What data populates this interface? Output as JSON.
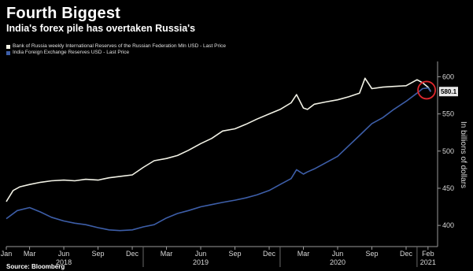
{
  "header": {
    "title": "Fourth Biggest",
    "subtitle": "India's forex pile has overtaken Russia's"
  },
  "footer": {
    "source": "Source: Bloomberg"
  },
  "colors": {
    "background": "#000000",
    "russia_series": "#f2f2e6",
    "india_series": "#3d5ea8",
    "highlight_circle": "#e0282e",
    "grid": "#3a3a3a"
  },
  "chart_data": {
    "type": "line",
    "title": "Fourth Biggest",
    "subtitle": "India's forex pile has overtaken Russia's",
    "ylabel": "In billions of dollars",
    "xlabel": "",
    "ylim": [
      380,
      610
    ],
    "y_axis_position": "right",
    "yticks": [
      400,
      450,
      500,
      550,
      600
    ],
    "grid": false,
    "legend_position": "top-left",
    "last_price_label": "580.1",
    "month_ticks": [
      "Jan",
      "Mar",
      "Jun",
      "Sep",
      "Dec",
      "Mar",
      "Jun",
      "Sep",
      "Dec",
      "Mar",
      "Jun",
      "Sep",
      "Dec",
      "Feb"
    ],
    "month_tick_x": [
      2018.0,
      2018.17,
      2018.42,
      2018.67,
      2018.92,
      2019.17,
      2019.42,
      2019.67,
      2019.92,
      2020.17,
      2020.42,
      2020.67,
      2020.92,
      2021.08
    ],
    "year_labels": [
      "2018",
      "2019",
      "2020",
      "2021"
    ],
    "year_label_x": [
      2018.42,
      2019.42,
      2020.42,
      2021.08
    ],
    "xlim": [
      2018.0,
      2021.15
    ],
    "series": [
      {
        "name": "Bank of Russia weekly International Reserves of the Russian Federation Mln USD - Last Price",
        "color": "#f2f2e6",
        "x": [
          2018.0,
          2018.05,
          2018.1,
          2018.17,
          2018.25,
          2018.33,
          2018.42,
          2018.5,
          2018.58,
          2018.67,
          2018.75,
          2018.83,
          2018.92,
          2019.0,
          2019.08,
          2019.17,
          2019.25,
          2019.33,
          2019.42,
          2019.5,
          2019.58,
          2019.67,
          2019.75,
          2019.83,
          2019.92,
          2020.0,
          2020.08,
          2020.12,
          2020.17,
          2020.2,
          2020.25,
          2020.33,
          2020.42,
          2020.5,
          2020.58,
          2020.62,
          2020.67,
          2020.75,
          2020.83,
          2020.92,
          2021.0,
          2021.04,
          2021.08,
          2021.1
        ],
        "values": [
          432,
          447,
          452,
          455,
          458,
          460,
          461,
          460,
          462,
          461,
          464,
          466,
          468,
          478,
          487,
          490,
          494,
          501,
          510,
          517,
          527,
          530,
          536,
          543,
          550,
          556,
          565,
          576,
          558,
          556,
          563,
          566,
          569,
          573,
          578,
          598,
          584,
          586,
          587,
          588,
          596,
          592,
          586,
          580
        ]
      },
      {
        "name": "India Foreign Exchange Reserves USD - Last Price",
        "color": "#3d5ea8",
        "x": [
          2018.0,
          2018.08,
          2018.17,
          2018.25,
          2018.33,
          2018.42,
          2018.5,
          2018.58,
          2018.67,
          2018.75,
          2018.83,
          2018.92,
          2019.0,
          2019.08,
          2019.17,
          2019.25,
          2019.33,
          2019.42,
          2019.5,
          2019.58,
          2019.67,
          2019.75,
          2019.83,
          2019.92,
          2020.0,
          2020.08,
          2020.12,
          2020.17,
          2020.2,
          2020.25,
          2020.33,
          2020.42,
          2020.5,
          2020.58,
          2020.67,
          2020.75,
          2020.83,
          2020.92,
          2021.0,
          2021.04,
          2021.08,
          2021.1
        ],
        "values": [
          409,
          420,
          424,
          418,
          411,
          406,
          403,
          401,
          397,
          394,
          393,
          394,
          398,
          401,
          410,
          416,
          420,
          425,
          428,
          431,
          434,
          437,
          441,
          447,
          455,
          463,
          475,
          469,
          472,
          476,
          484,
          493,
          507,
          521,
          537,
          545,
          556,
          567,
          578,
          584,
          585,
          580
        ]
      }
    ]
  }
}
